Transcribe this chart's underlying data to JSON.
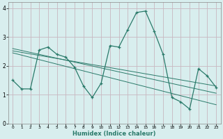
{
  "xlabel": "Humidex (Indice chaleur)",
  "bg_color": "#d8eeee",
  "grid_color": "#c8d8d0",
  "line_color": "#2a7a6a",
  "xlim": [
    -0.5,
    23.5
  ],
  "ylim": [
    0,
    4.2
  ],
  "xticks": [
    0,
    1,
    2,
    3,
    4,
    5,
    6,
    7,
    8,
    9,
    10,
    11,
    12,
    13,
    14,
    15,
    16,
    17,
    18,
    19,
    20,
    21,
    22,
    23
  ],
  "yticks": [
    0,
    1,
    2,
    3,
    4
  ],
  "series": [
    [
      0,
      1.5
    ],
    [
      1,
      1.2
    ],
    [
      2,
      1.2
    ],
    [
      3,
      2.55
    ],
    [
      4,
      2.65
    ],
    [
      5,
      2.4
    ],
    [
      6,
      2.3
    ],
    [
      7,
      1.95
    ],
    [
      8,
      1.3
    ],
    [
      9,
      0.9
    ],
    [
      10,
      1.4
    ],
    [
      11,
      2.7
    ],
    [
      12,
      2.65
    ],
    [
      13,
      3.25
    ],
    [
      14,
      3.85
    ],
    [
      15,
      3.9
    ],
    [
      16,
      3.2
    ],
    [
      17,
      2.4
    ],
    [
      18,
      0.9
    ],
    [
      19,
      0.75
    ],
    [
      20,
      0.5
    ],
    [
      21,
      1.9
    ],
    [
      22,
      1.65
    ],
    [
      23,
      1.25
    ]
  ],
  "trend_lines": [
    [
      [
        0,
        2.6
      ],
      [
        23,
        1.05
      ]
    ],
    [
      [
        0,
        2.52
      ],
      [
        23,
        1.3
      ]
    ],
    [
      [
        0,
        2.45
      ],
      [
        23,
        0.65
      ]
    ]
  ]
}
